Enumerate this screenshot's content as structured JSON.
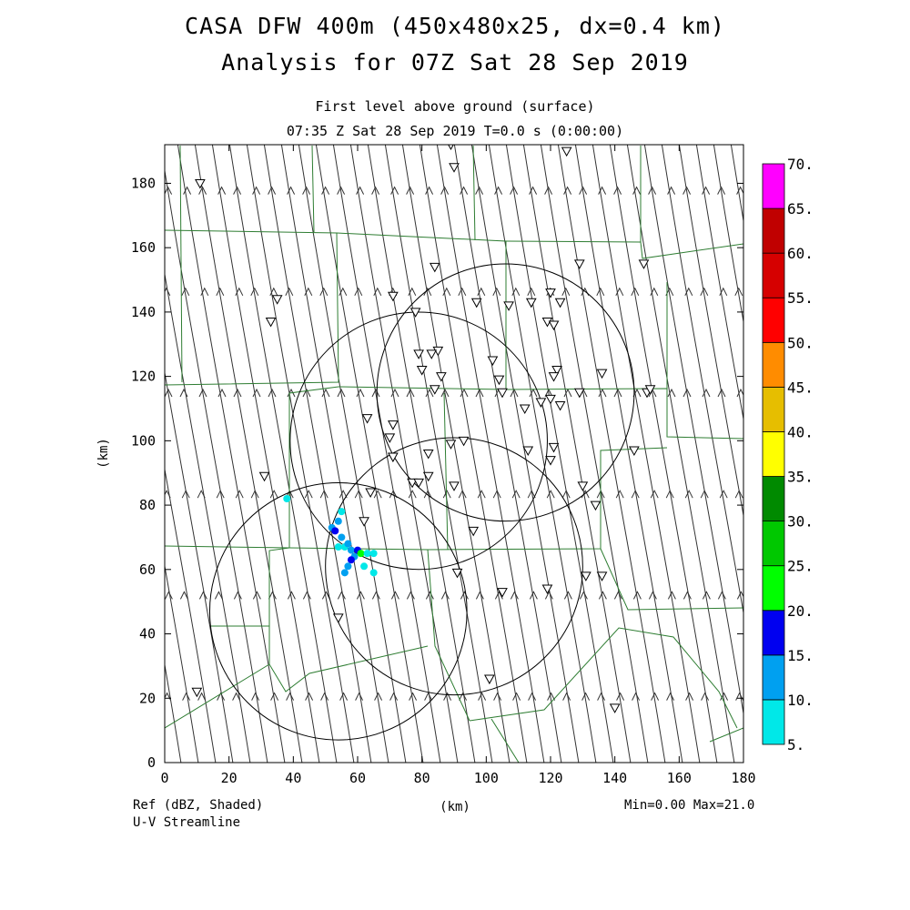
{
  "header": {
    "title": "CASA DFW 400m (450x480x25, dx=0.4 km)",
    "subtitle": "Analysis for 07Z Sat 28 Sep 2019",
    "level": "First level above ground (surface)",
    "time": "07:35 Z Sat 28 Sep 2019    T=0.0 s (0:00:00)"
  },
  "footer": {
    "field_label": "Ref (dBZ, Shaded)",
    "overlay_label": "U-V Streamline",
    "minmax": "Min=0.00 Max=21.0"
  },
  "chart_data": {
    "type": "heatmap",
    "xlabel": "(km)",
    "ylabel": "(km)",
    "xlim": [
      0,
      180
    ],
    "ylim": [
      0,
      192
    ],
    "x_ticks": [
      0,
      20,
      40,
      60,
      80,
      100,
      120,
      140,
      160,
      180
    ],
    "y_ticks": [
      0,
      20,
      40,
      60,
      80,
      100,
      120,
      140,
      160,
      180
    ],
    "x_tick_labels": [
      "0",
      "20",
      "40",
      "60",
      "80",
      "100",
      "120",
      "140",
      "160",
      "180"
    ],
    "y_tick_labels": [
      "0",
      "20",
      "40",
      "60",
      "80",
      "100",
      "120",
      "140",
      "160",
      "180"
    ],
    "colorbar": {
      "levels": [
        5,
        10,
        15,
        20,
        25,
        30,
        35,
        40,
        45,
        50,
        55,
        60,
        65,
        70
      ],
      "labels": [
        "5.",
        "10.",
        "15.",
        "20.",
        "25.",
        "30.",
        "35.",
        "40.",
        "45.",
        "50.",
        "55.",
        "60.",
        "65.",
        "70."
      ],
      "colors": [
        "#00e8e8",
        "#00a0f0",
        "#0000f0",
        "#00ff00",
        "#00c800",
        "#008a00",
        "#ffff00",
        "#e6be00",
        "#ff8c00",
        "#ff0000",
        "#d60000",
        "#c00000",
        "#ff00ff"
      ]
    },
    "radar_rings": [
      {
        "center": [
          79,
          100
        ],
        "radius": 40
      },
      {
        "center": [
          54,
          47
        ],
        "radius": 40
      },
      {
        "center": [
          106,
          115
        ],
        "radius": 40
      },
      {
        "center": [
          90,
          61
        ],
        "radius": 40
      }
    ],
    "reflectivity_cells": [
      {
        "x": 38,
        "y": 82,
        "dbz": 8
      },
      {
        "x": 52,
        "y": 73,
        "dbz": 14
      },
      {
        "x": 53,
        "y": 72,
        "dbz": 17
      },
      {
        "x": 54,
        "y": 75,
        "dbz": 10
      },
      {
        "x": 55,
        "y": 70,
        "dbz": 12
      },
      {
        "x": 56,
        "y": 67,
        "dbz": 9
      },
      {
        "x": 57,
        "y": 68,
        "dbz": 12
      },
      {
        "x": 58,
        "y": 66,
        "dbz": 11
      },
      {
        "x": 59,
        "y": 64,
        "dbz": 14
      },
      {
        "x": 60,
        "y": 66,
        "dbz": 18
      },
      {
        "x": 61,
        "y": 65,
        "dbz": 21
      },
      {
        "x": 58,
        "y": 63,
        "dbz": 16
      },
      {
        "x": 57,
        "y": 61,
        "dbz": 12
      },
      {
        "x": 56,
        "y": 59,
        "dbz": 11
      },
      {
        "x": 63,
        "y": 65,
        "dbz": 9
      },
      {
        "x": 65,
        "y": 65,
        "dbz": 8
      },
      {
        "x": 65,
        "y": 59,
        "dbz": 8
      },
      {
        "x": 62,
        "y": 61,
        "dbz": 7
      },
      {
        "x": 55,
        "y": 78,
        "dbz": 6
      },
      {
        "x": 54,
        "y": 67,
        "dbz": 7
      }
    ],
    "stations": [
      [
        11,
        180
      ],
      [
        89,
        192
      ],
      [
        90,
        185
      ],
      [
        125,
        190
      ],
      [
        35,
        144
      ],
      [
        33,
        137
      ],
      [
        71,
        145
      ],
      [
        84,
        154
      ],
      [
        129,
        155
      ],
      [
        120,
        146
      ],
      [
        114,
        143
      ],
      [
        97,
        143
      ],
      [
        78,
        140
      ],
      [
        123,
        143
      ],
      [
        107,
        142
      ],
      [
        119,
        137
      ],
      [
        121,
        136
      ],
      [
        85,
        128
      ],
      [
        83,
        127
      ],
      [
        79,
        127
      ],
      [
        102,
        125
      ],
      [
        80,
        122
      ],
      [
        86,
        120
      ],
      [
        122,
        122
      ],
      [
        121,
        120
      ],
      [
        104,
        119
      ],
      [
        112,
        110
      ],
      [
        129,
        115
      ],
      [
        136,
        121
      ],
      [
        84,
        116
      ],
      [
        105,
        115
      ],
      [
        117,
        112
      ],
      [
        120,
        113
      ],
      [
        123,
        111
      ],
      [
        150,
        115
      ],
      [
        151,
        116
      ],
      [
        71,
        105
      ],
      [
        63,
        107
      ],
      [
        70,
        101
      ],
      [
        82,
        96
      ],
      [
        71,
        95
      ],
      [
        89,
        99
      ],
      [
        93,
        100
      ],
      [
        113,
        97
      ],
      [
        120,
        94
      ],
      [
        121,
        98
      ],
      [
        77,
        87
      ],
      [
        79,
        87
      ],
      [
        82,
        89
      ],
      [
        90,
        86
      ],
      [
        64,
        84
      ],
      [
        31,
        89
      ],
      [
        130,
        86
      ],
      [
        134,
        80
      ],
      [
        62,
        75
      ],
      [
        96,
        72
      ],
      [
        91,
        59
      ],
      [
        131,
        58
      ],
      [
        105,
        53
      ],
      [
        119,
        54
      ],
      [
        54,
        45
      ],
      [
        136,
        58
      ],
      [
        146,
        97
      ],
      [
        101,
        26
      ],
      [
        140,
        17
      ],
      [
        10,
        22
      ],
      [
        149,
        155
      ]
    ],
    "wind": "northward flow with slight westward component"
  }
}
